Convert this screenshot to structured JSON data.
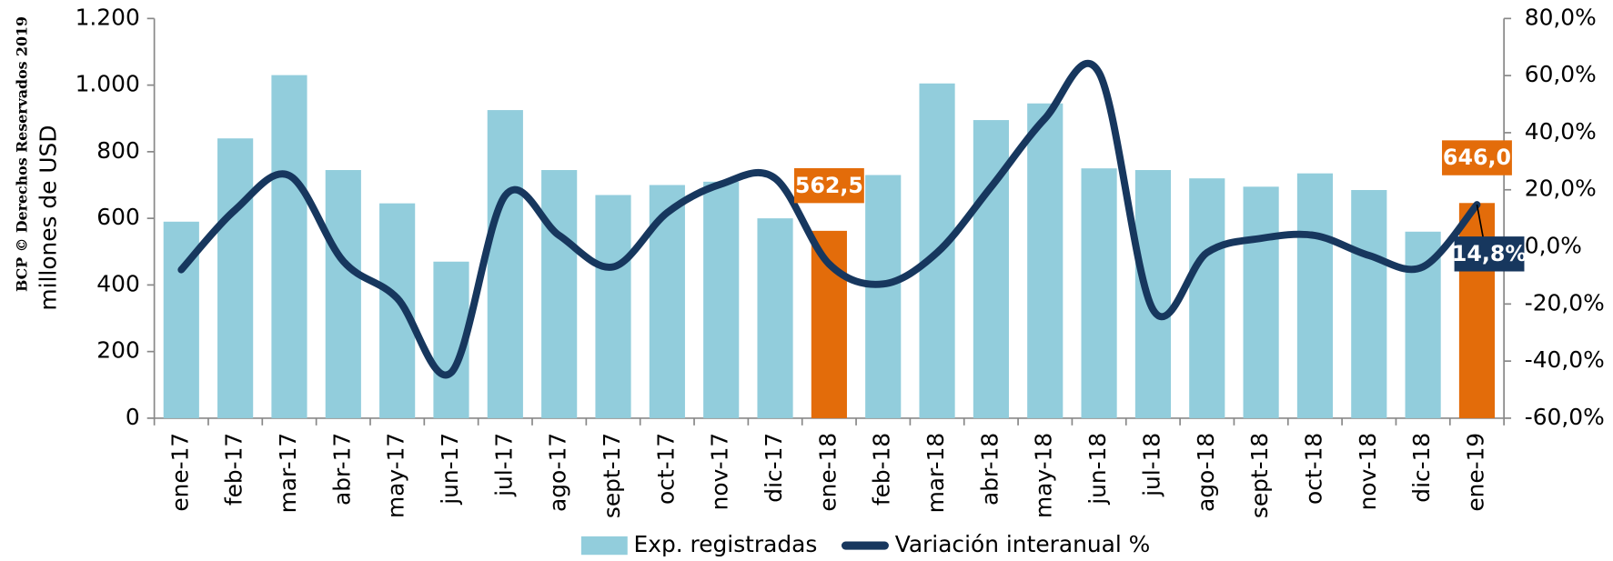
{
  "chart_data": {
    "type": "bar_line",
    "y_label": "millones de USD",
    "annotation": "BCP © Derechos Reservados 2019",
    "categories": [
      "ene-17",
      "feb-17",
      "mar-17",
      "abr-17",
      "may-17",
      "jun-17",
      "jul-17",
      "ago-17",
      "sept-17",
      "oct-17",
      "nov-17",
      "dic-17",
      "ene-18",
      "feb-18",
      "mar-18",
      "abr-18",
      "may-18",
      "jun-18",
      "jul-18",
      "ago-18",
      "sept-18",
      "oct-18",
      "nov-18",
      "dic-18",
      "ene-19"
    ],
    "series": [
      {
        "name": "Exp. registradas",
        "type": "bar",
        "color": "#92cddc",
        "colors": [
          "#92cddc",
          "#92cddc",
          "#92cddc",
          "#92cddc",
          "#92cddc",
          "#92cddc",
          "#92cddc",
          "#92cddc",
          "#92cddc",
          "#92cddc",
          "#92cddc",
          "#92cddc",
          "#e36c0a",
          "#92cddc",
          "#92cddc",
          "#92cddc",
          "#92cddc",
          "#92cddc",
          "#92cddc",
          "#92cddc",
          "#92cddc",
          "#92cddc",
          "#92cddc",
          "#92cddc",
          "#e36c0a"
        ],
        "values": [
          590,
          840,
          1030,
          745,
          645,
          470,
          925,
          745,
          670,
          700,
          710,
          600,
          562.5,
          730,
          1005,
          895,
          945,
          750,
          745,
          720,
          695,
          735,
          685,
          560,
          646.0
        ],
        "value_labels": [
          null,
          null,
          null,
          null,
          null,
          null,
          null,
          null,
          null,
          null,
          null,
          null,
          "562,5",
          null,
          null,
          null,
          null,
          null,
          null,
          null,
          null,
          null,
          null,
          null,
          "646,0"
        ]
      },
      {
        "name": "Variación interanual %",
        "type": "line",
        "axis": "y2",
        "color": "#17375e",
        "values": [
          -8,
          13,
          25,
          -5,
          -18,
          -44,
          18,
          4,
          -7,
          12,
          22,
          24,
          -6,
          -13,
          -2,
          21,
          45,
          61,
          -22,
          -2,
          3,
          4,
          -3,
          -7,
          14.8
        ],
        "value_labels": [
          null,
          null,
          null,
          null,
          null,
          null,
          null,
          null,
          null,
          null,
          null,
          null,
          null,
          null,
          null,
          null,
          null,
          null,
          null,
          null,
          null,
          null,
          null,
          null,
          "14,8%"
        ]
      }
    ],
    "ylim": [
      0,
      1200
    ],
    "yticks": [
      0,
      200,
      400,
      600,
      800,
      {
        "value": 1000,
        "label": "1.000"
      },
      {
        "value": 1200,
        "label": "1.200"
      }
    ],
    "y2lim": [
      -60,
      80
    ],
    "y2ticks": [
      {
        "value": -60,
        "label": "-60,0%"
      },
      {
        "value": -40,
        "label": "-40,0%"
      },
      {
        "value": -20,
        "label": "-20,0%"
      },
      {
        "value": 0,
        "label": "0,0%"
      },
      {
        "value": 20,
        "label": "20,0%"
      },
      {
        "value": 40,
        "label": "40,0%"
      },
      {
        "value": 60,
        "label": "60,0%"
      },
      {
        "value": 80,
        "label": "80,0%"
      }
    ],
    "legend": "bottom"
  }
}
